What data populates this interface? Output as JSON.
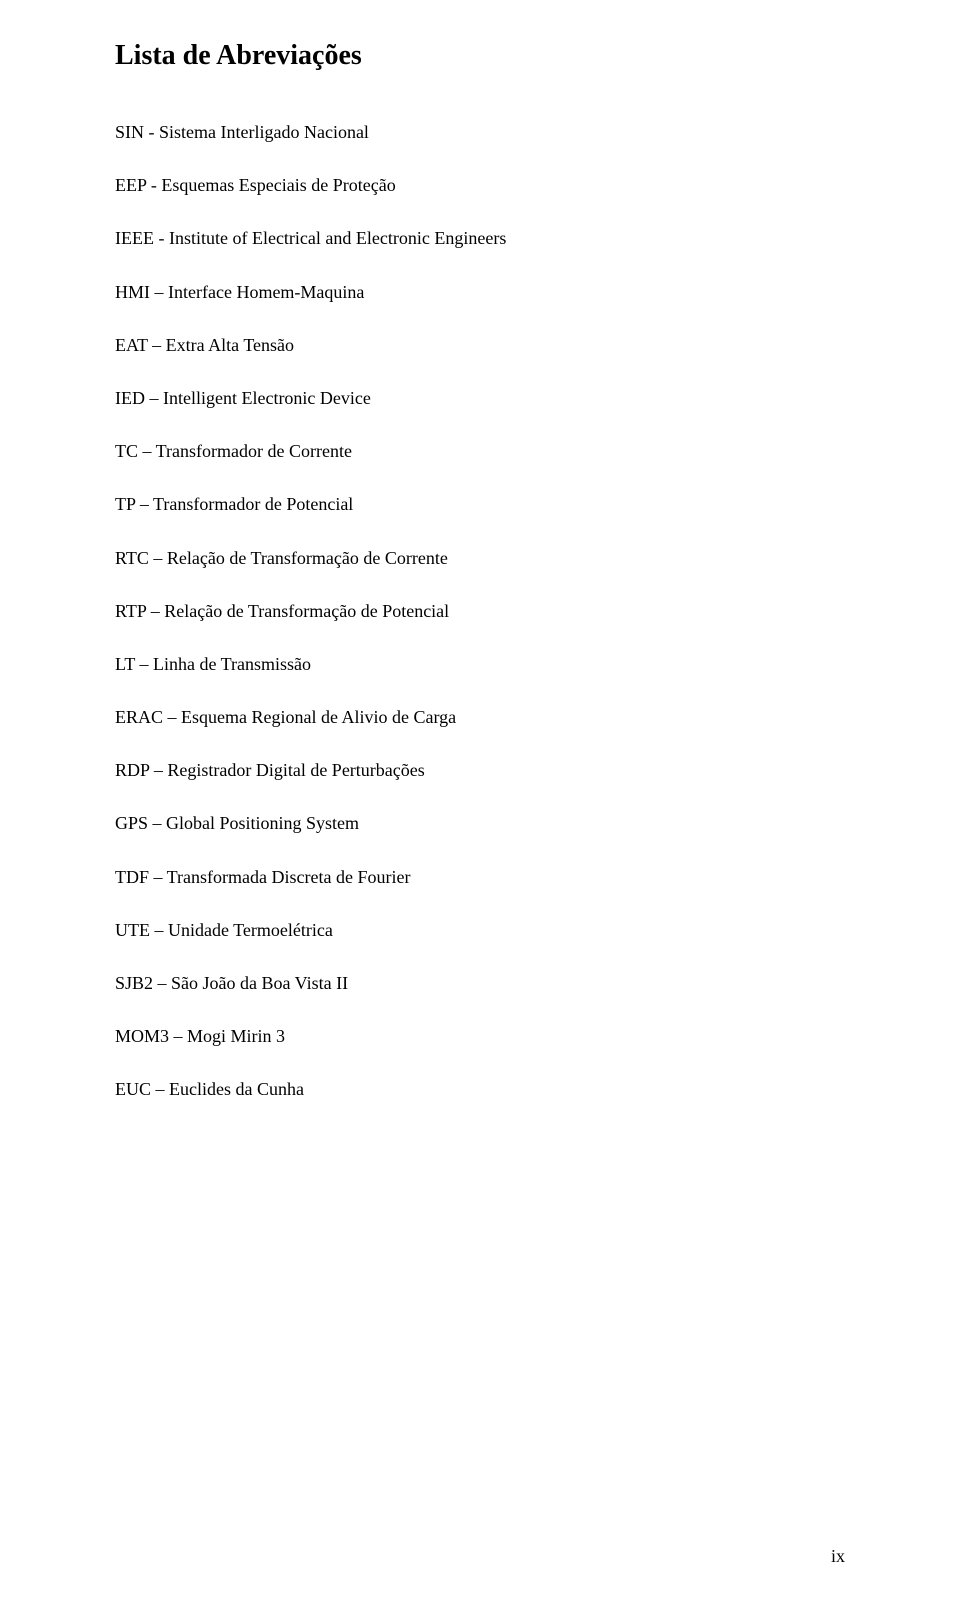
{
  "page": {
    "title": "Lista de Abreviações",
    "page_number": "ix",
    "background_color": "#ffffff",
    "text_color": "#000000",
    "title_fontsize": 28,
    "body_fontsize": 18,
    "font_family": "Times New Roman"
  },
  "abbreviations": [
    {
      "text": "SIN - Sistema Interligado Nacional"
    },
    {
      "text": "EEP - Esquemas Especiais de Proteção"
    },
    {
      "text": "IEEE - Institute of Electrical and Electronic Engineers"
    },
    {
      "text": "HMI – Interface Homem-Maquina"
    },
    {
      "text": "EAT – Extra Alta Tensão"
    },
    {
      "text": "IED – Intelligent Electronic Device"
    },
    {
      "text": "TC – Transformador de Corrente"
    },
    {
      "text": "TP – Transformador de Potencial"
    },
    {
      "text": "RTC – Relação de Transformação de Corrente"
    },
    {
      "text": "RTP – Relação de Transformação de Potencial"
    },
    {
      "text": "LT – Linha de Transmissão"
    },
    {
      "text": "ERAC – Esquema Regional de Alivio de Carga"
    },
    {
      "text": "RDP – Registrador Digital de Perturbações"
    },
    {
      "text": "GPS – Global Positioning System"
    },
    {
      "text": "TDF – Transformada Discreta de Fourier"
    },
    {
      "text": "UTE – Unidade Termoelétrica"
    },
    {
      "text": "SJB2 – São João da Boa Vista II"
    },
    {
      "text": "MOM3 – Mogi Mirin 3"
    },
    {
      "text": "EUC – Euclides da Cunha"
    }
  ]
}
